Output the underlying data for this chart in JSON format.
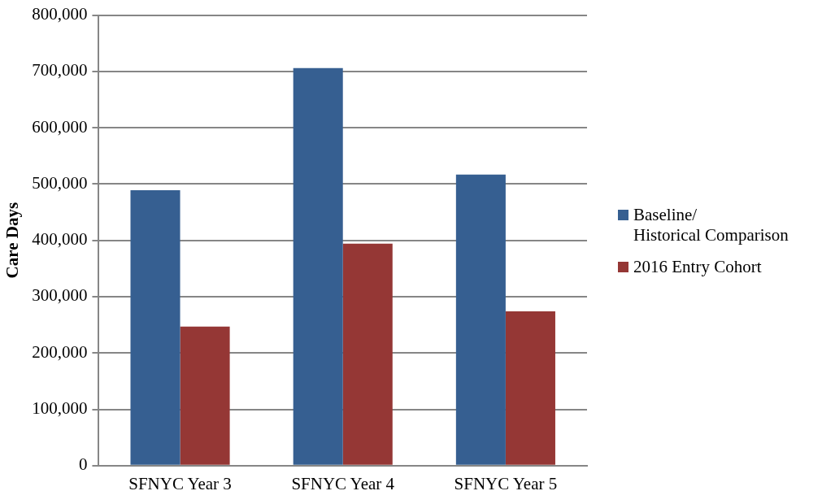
{
  "chart_data": {
    "type": "bar",
    "ylabel": "Care Days",
    "categories": [
      "SFNYC Year 3",
      "SFNYC Year 4",
      "SFNYC Year 5"
    ],
    "series": [
      {
        "name": "Baseline/\nHistorical Comparison",
        "color": "#365f91",
        "values": [
          489000,
          706000,
          517000
        ]
      },
      {
        "name": "2016 Entry Cohort",
        "color": "#953735",
        "values": [
          247000,
          394000,
          274000
        ]
      }
    ],
    "ylim": [
      0,
      800000
    ],
    "yticks": [
      0,
      {
        "value": 100000,
        "label": "100,000"
      },
      {
        "value": 200000,
        "label": "200,000"
      },
      {
        "value": 300000,
        "label": "300,000"
      },
      {
        "value": 400000,
        "label": "400,000"
      },
      {
        "value": 500000,
        "label": "500,000"
      },
      {
        "value": 600000,
        "label": "600,000"
      },
      {
        "value": 700000,
        "label": "700,000"
      },
      {
        "value": 800000,
        "label": "800,000"
      }
    ],
    "grid": "y",
    "legend": "right"
  }
}
